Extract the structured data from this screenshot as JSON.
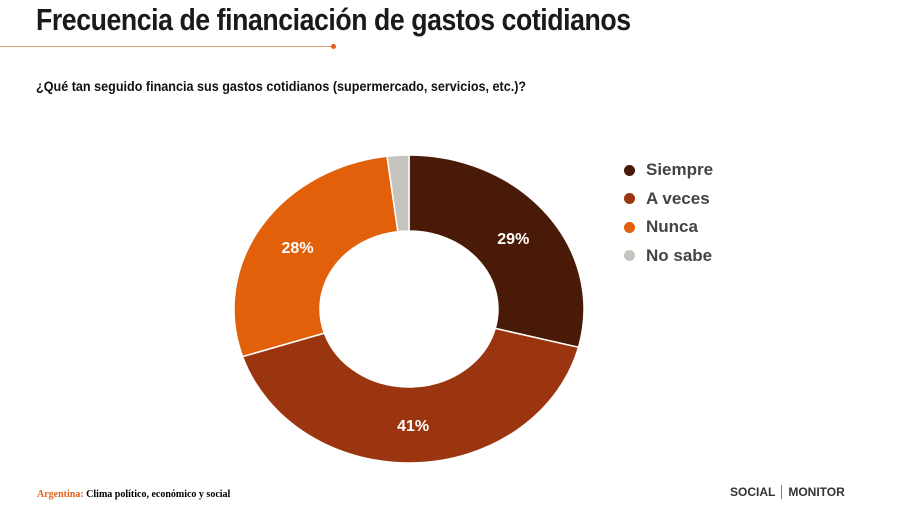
{
  "title": "Frecuencia de financiación de gastos cotidianos",
  "footer": {
    "country": "Argentina:",
    "text": "Clima político, económico y social"
  },
  "logos": {
    "left": "SOCIAL",
    "right": "MONITOR"
  },
  "chart_data": {
    "type": "pie",
    "donut": true,
    "subtitle": "¿Qué tan seguido financia sus gastos cotidianos (supermercado, servicios, etc.)?",
    "categories": [
      "Siempre",
      "A veces",
      "Nunca",
      "No sabe"
    ],
    "values": [
      29,
      41,
      28,
      2
    ],
    "labels": [
      "29%",
      "41%",
      "28%",
      ""
    ],
    "colors": [
      "#4a1a08",
      "#9b3510",
      "#e2600a",
      "#c5c3bd"
    ],
    "legend_position": "right"
  }
}
